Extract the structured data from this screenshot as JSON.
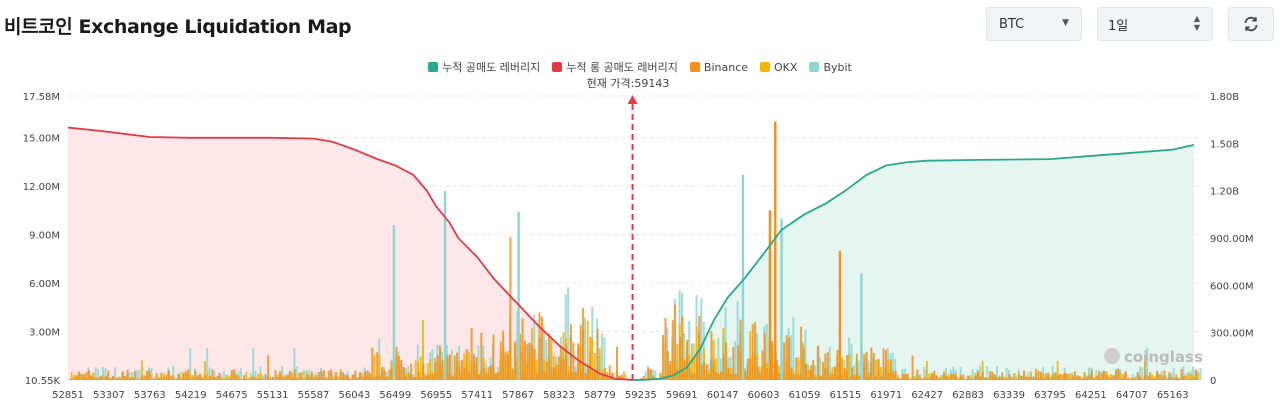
{
  "header": {
    "title": "비트코인 Exchange Liquidation Map"
  },
  "controls": {
    "coin": "BTC",
    "range": "1일"
  },
  "colors": {
    "cum_short": "#27a88f",
    "cum_long": "#e03c47",
    "binance": "#f0901d",
    "okx": "#f5b400",
    "bybit": "#8fd6d2",
    "long_fill": "#fde3e5",
    "short_fill": "#e2f4ee"
  },
  "chart_data": {
    "type": "bar",
    "title": "비트코인 Exchange Liquidation Map",
    "current_price_label": "현재 가격:59143",
    "current_price": 59143,
    "legend": [
      {
        "name": "누적 공매도 레버리지",
        "color": "#27a88f"
      },
      {
        "name": "누적 롱 공매도 레버리지",
        "color": "#e03c47"
      },
      {
        "name": "Binance",
        "color": "#f0901d"
      },
      {
        "name": "OKX",
        "color": "#f5b400"
      },
      {
        "name": "Bybit",
        "color": "#8fd6d2"
      }
    ],
    "x_range": [
      52851,
      65467
    ],
    "x_ticks": [
      "52851",
      "53307",
      "53763",
      "54219",
      "54675",
      "55131",
      "55587",
      "56043",
      "56499",
      "56955",
      "57411",
      "57867",
      "58323",
      "58779",
      "59235",
      "59691",
      "60147",
      "60603",
      "61059",
      "61515",
      "61971",
      "62427",
      "62883",
      "63339",
      "63795",
      "64251",
      "64707",
      "65163"
    ],
    "y_left": {
      "range": [
        0,
        17580000
      ],
      "ticks": [
        [
          "10.55K",
          0
        ],
        [
          "3.00M",
          3000000
        ],
        [
          "6.00M",
          6000000
        ],
        [
          "9.00M",
          9000000
        ],
        [
          "12.00M",
          12000000
        ],
        [
          "15.00M",
          15000000
        ],
        [
          "17.58M",
          17580000
        ]
      ]
    },
    "y_right": {
      "range": [
        0,
        1800000000
      ],
      "ticks": [
        [
          "0",
          0
        ],
        [
          "300.00M",
          300000000
        ],
        [
          "600.00M",
          600000000
        ],
        [
          "900.00M",
          900000000
        ],
        [
          "1.20B",
          1200000000
        ],
        [
          "1.50B",
          1500000000
        ],
        [
          "1.80B",
          1800000000
        ]
      ]
    },
    "cumulative_long": {
      "x": [
        52851,
        53200,
        53763,
        54219,
        54675,
        55131,
        55587,
        55800,
        56043,
        56300,
        56499,
        56700,
        56850,
        56955,
        57100,
        57200,
        57411,
        57600,
        57867,
        58100,
        58323,
        58550,
        58779,
        58950,
        59100,
        59143
      ],
      "y": [
        1600000000,
        1580000000,
        1540000000,
        1535000000,
        1535000000,
        1535000000,
        1530000000,
        1510000000,
        1460000000,
        1400000000,
        1360000000,
        1300000000,
        1200000000,
        1100000000,
        1000000000,
        900000000,
        780000000,
        640000000,
        480000000,
        340000000,
        220000000,
        120000000,
        40000000,
        8000000,
        2000000,
        0
      ]
    },
    "cumulative_short": {
      "x": [
        59143,
        59300,
        59450,
        59600,
        59750,
        59900,
        60050,
        60200,
        60400,
        60603,
        60800,
        61059,
        61300,
        61515,
        61750,
        61971,
        62200,
        62427,
        63000,
        63795,
        64251,
        64707,
        65163,
        65400
      ],
      "y": [
        0,
        2000000,
        8000000,
        30000000,
        80000000,
        200000000,
        380000000,
        520000000,
        650000000,
        800000000,
        950000000,
        1050000000,
        1120000000,
        1200000000,
        1300000000,
        1360000000,
        1380000000,
        1390000000,
        1395000000,
        1400000000,
        1420000000,
        1440000000,
        1460000000,
        1490000000
      ]
    },
    "bar_series": [
      "Binance",
      "OKX",
      "Bybit"
    ],
    "notable_bars": [
      {
        "exchange": "Binance",
        "price": 60720,
        "value": 16000000
      },
      {
        "exchange": "Bybit",
        "price": 57040,
        "value": 11700000
      },
      {
        "exchange": "Binance",
        "price": 60660,
        "value": 10500000
      },
      {
        "exchange": "Bybit",
        "price": 57860,
        "value": 10400000
      },
      {
        "exchange": "Bybit",
        "price": 60790,
        "value": 10000000
      },
      {
        "exchange": "Bybit",
        "price": 60360,
        "value": 12700000
      },
      {
        "exchange": "Binance",
        "price": 61440,
        "value": 8000000
      },
      {
        "exchange": "Bybit",
        "price": 61680,
        "value": 6600000
      },
      {
        "exchange": "Bybit",
        "price": 56470,
        "value": 9600000
      }
    ],
    "watermark": "coinglass"
  }
}
